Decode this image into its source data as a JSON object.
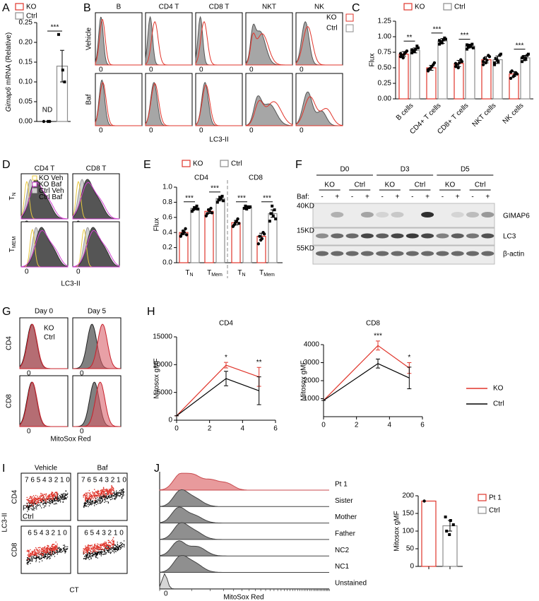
{
  "panel_a": {
    "letter": "A",
    "type": "bar",
    "ylabel_gene": "Gimap6",
    "ylabel_rest": "mRNA (Relative)",
    "ylim": [
      0,
      0.25
    ],
    "yticks": [
      {
        "value": 0,
        "label": "0.00"
      },
      0.05,
      {
        "value": 0.1,
        "label": "0.10"
      },
      0.15,
      {
        "value": 0.2,
        "label": "0.20"
      },
      0.25
    ],
    "series": [
      {
        "name": "KO",
        "color": "#e0352b",
        "value": null,
        "label": "ND",
        "points": [
          0,
          0,
          0
        ]
      },
      {
        "name": "Ctrl",
        "color": "#8c8c8c",
        "value": 0.14,
        "error": 0.04,
        "points": [
          0.22,
          0.13,
          0.1
        ]
      }
    ],
    "significance": "***"
  },
  "panel_b": {
    "letter": "B",
    "columns": [
      "B",
      "CD4 T",
      "CD8 T",
      "NKT",
      "NK"
    ],
    "rows": [
      "Vehicle",
      "Baf"
    ],
    "xlabel": "LC3-II",
    "zero": "0",
    "legend": [
      {
        "name": "KO",
        "color": "#e0352b"
      },
      {
        "name": "Ctrl",
        "color": "#8c8c8c"
      }
    ]
  },
  "panel_c": {
    "letter": "C",
    "type": "bar",
    "ylabel": "Flux",
    "categories": [
      "B cells",
      "CD4+ T cells",
      "CD8+ T cells",
      "NKT cells",
      "NK cells"
    ],
    "ylim": [
      0,
      1.25
    ],
    "yticks": [
      {
        "value": 0,
        "label": "0.00"
      },
      0.25,
      {
        "value": 0.5,
        "label": "0.50"
      },
      0.75,
      {
        "value": 1,
        "label": "1.00"
      },
      1.25
    ],
    "series": [
      {
        "name": "KO",
        "color": "#e0352b",
        "values": [
          0.72,
          0.5,
          0.57,
          0.63,
          0.4
        ],
        "errors": [
          0.04,
          0.04,
          0.05,
          0.05,
          0.04
        ],
        "points": [
          [
            0.68,
            0.72,
            0.75,
            0.7,
            0.66,
            0.77,
            0.73
          ],
          [
            0.45,
            0.52,
            0.55,
            0.48,
            0.5,
            0.58,
            0.47
          ],
          [
            0.52,
            0.58,
            0.63,
            0.55,
            0.5,
            0.6,
            0.57
          ],
          [
            0.55,
            0.62,
            0.7,
            0.65,
            0.58,
            0.68,
            0.6
          ],
          [
            0.33,
            0.38,
            0.42,
            0.45,
            0.36,
            0.4,
            0.43
          ]
        ]
      },
      {
        "name": "Ctrl",
        "color": "#8c8c8c",
        "values": [
          0.78,
          0.93,
          0.85,
          0.63,
          0.66
        ],
        "errors": [
          0.04,
          0.04,
          0.03,
          0.06,
          0.04
        ],
        "points": [
          [
            0.74,
            0.8,
            0.85,
            0.78,
            0.76,
            0.82,
            0.79
          ],
          [
            0.88,
            0.95,
            0.98,
            0.92,
            0.9,
            0.96,
            0.94
          ],
          [
            0.8,
            0.85,
            0.88,
            0.83,
            0.86,
            0.82,
            0.87
          ],
          [
            0.55,
            0.6,
            0.7,
            0.65,
            0.62,
            0.72,
            0.58
          ],
          [
            0.6,
            0.65,
            0.7,
            0.68,
            0.63,
            0.72,
            0.66
          ]
        ]
      }
    ],
    "significance": [
      "**",
      "***",
      "***",
      null,
      "***"
    ]
  },
  "panel_d": {
    "letter": "D",
    "columns": [
      "CD4 T",
      "CD8 T"
    ],
    "rows": [
      {
        "main": "T",
        "sub": "N"
      },
      {
        "main": "T",
        "sub": "MEM"
      }
    ],
    "xlabel": "LC3-II",
    "zero": "0",
    "legend": [
      {
        "name": "KO Veh",
        "color": "#e8c840"
      },
      {
        "name": "KO Baf",
        "color": "#d040d0"
      },
      {
        "name": "Ctrl Veh",
        "color": "#cfcfcf"
      },
      {
        "name": "Ctrl Baf",
        "color": "#555555"
      }
    ]
  },
  "panel_e": {
    "letter": "E",
    "type": "bar",
    "ylabel": "Flux",
    "groups": [
      "CD4",
      "CD8"
    ],
    "categories": [
      {
        "main": "T",
        "sub": "N"
      },
      {
        "main": "T",
        "sub": "Mem"
      },
      {
        "main": "T",
        "sub": "N"
      },
      {
        "main": "T",
        "sub": "Mem"
      }
    ],
    "ylim": [
      0,
      1
    ],
    "yticks": [
      {
        "value": 0,
        "label": "0.0"
      },
      0.2,
      0.4,
      0.6,
      0.8,
      {
        "value": 1,
        "label": "1.0"
      }
    ],
    "series": [
      {
        "name": "KO",
        "color": "#e0352b",
        "values": [
          0.4,
          0.68,
          0.53,
          0.35
        ],
        "errors": [
          0.03,
          0.03,
          0.03,
          0.04
        ],
        "points": [
          [
            0.35,
            0.4,
            0.45,
            0.38,
            0.42,
            0.37
          ],
          [
            0.62,
            0.68,
            0.72,
            0.65,
            0.7,
            0.66
          ],
          [
            0.48,
            0.55,
            0.58,
            0.5,
            0.53,
            0.52
          ],
          [
            0.25,
            0.32,
            0.4,
            0.35,
            0.3,
            0.38
          ]
        ]
      },
      {
        "name": "Ctrl",
        "color": "#8c8c8c",
        "values": [
          0.72,
          0.85,
          0.73,
          0.65
        ],
        "errors": [
          0.02,
          0.03,
          0.01,
          0.05
        ],
        "points": [
          [
            0.68,
            0.72,
            0.75,
            0.7,
            0.73,
            0.71
          ],
          [
            0.8,
            0.85,
            0.88,
            0.83,
            0.86,
            0.82
          ],
          [
            0.72,
            0.74,
            0.73,
            0.75,
            0.71,
            0.74
          ],
          [
            0.55,
            0.62,
            0.7,
            0.65,
            0.75,
            0.58
          ]
        ]
      }
    ],
    "significance": [
      "***",
      "***",
      "***",
      "***"
    ]
  },
  "panel_f": {
    "letter": "F",
    "timepoints": [
      "D0",
      "D3",
      "D5"
    ],
    "genotypes": [
      "KO",
      "Ctrl",
      "KO",
      "Ctrl",
      "KO",
      "Ctrl"
    ],
    "baf_label": "Baf:",
    "baf": [
      "-",
      "+",
      "-",
      "+",
      "-",
      "+",
      "-",
      "+",
      "-",
      "+",
      "-",
      "+"
    ],
    "markers": [
      "40KD",
      "15KD",
      "55KD"
    ],
    "bands": [
      "GIMAP6",
      "LC3",
      "β-actin"
    ]
  },
  "panel_g": {
    "letter": "G",
    "columns": [
      "Day 0",
      "Day 5"
    ],
    "rows": [
      "CD4",
      "CD8"
    ],
    "xlabel": "MitoSox Red",
    "zero": "0",
    "legend": [
      {
        "name": "KO",
        "color": "#c8202a"
      },
      {
        "name": "Ctrl",
        "color": "#333333"
      }
    ]
  },
  "panel_h": {
    "letter": "H",
    "charts": [
      {
        "type": "line",
        "title": "CD4",
        "ylabel": "Mitosox gMF",
        "x": [
          0,
          3,
          5
        ],
        "xlim": [
          0,
          6
        ],
        "xticks": [
          0,
          2,
          4,
          6
        ],
        "ylim": [
          0,
          15000
        ],
        "yticks": [
          0,
          5000,
          10000,
          15000
        ],
        "series": [
          {
            "name": "KO",
            "color": "#e0352b",
            "values": [
              800,
              9900,
              7800
            ],
            "errors": [
              0,
              500,
              1700
            ]
          },
          {
            "name": "Ctrl",
            "color": "#000000",
            "values": [
              800,
              7500,
              5300
            ],
            "errors": [
              0,
              1300,
              2500
            ]
          }
        ],
        "significance": [
          null,
          "*",
          "**"
        ]
      },
      {
        "type": "line",
        "title": "CD8",
        "ylabel": "Mitosox gMF",
        "x": [
          0,
          3.3,
          5.2
        ],
        "xlim": [
          0,
          6
        ],
        "xticks": [
          0,
          2,
          4,
          6
        ],
        "ylim": [
          0,
          4000
        ],
        "yticks": [
          1000,
          2000,
          3000,
          4000
        ],
        "series": [
          {
            "name": "KO",
            "color": "#e0352b",
            "values": [
              900,
              3950,
              2700
            ],
            "errors": [
              0,
              250,
              300
            ]
          },
          {
            "name": "Ctrl",
            "color": "#000000",
            "values": [
              900,
              2950,
              2150
            ],
            "errors": [
              0,
              250,
              600
            ]
          }
        ],
        "significance": [
          null,
          "***",
          "*"
        ]
      }
    ]
  },
  "panel_i": {
    "letter": "I",
    "columns": [
      "Vehicle",
      "Baf"
    ],
    "rows": [
      "CD4",
      "CD8"
    ],
    "ylabel": "LC3-II",
    "xlabel": "CT",
    "divisions": [
      "7 6 5 4 3 2 1 0",
      "6 5 4 3 2 1 0"
    ],
    "legend": [
      {
        "name": "Pt 1",
        "color": "#e0352b"
      },
      {
        "name": "Ctrl",
        "color": "#000000"
      }
    ]
  },
  "panel_j": {
    "letter": "J",
    "samples": [
      "Pt 1",
      "Sister",
      "Mother",
      "Father",
      "NC2",
      "NC1",
      "Unstained"
    ],
    "xlabel": "MitoSox Red",
    "zero": "0",
    "chart": {
      "type": "bar",
      "ylabel": "Mitosox gMF",
      "ylim": [
        0,
        200
      ],
      "yticks": [
        0,
        50,
        100,
        150,
        200
      ],
      "series": [
        {
          "name": "Pt 1",
          "color": "#e0352b",
          "value": 185,
          "points": [
            185
          ]
        },
        {
          "name": "Ctrl",
          "color": "#8c8c8c",
          "value": 115,
          "error": 15,
          "points": [
            140,
            130,
            118,
            100,
            90
          ]
        }
      ]
    }
  }
}
